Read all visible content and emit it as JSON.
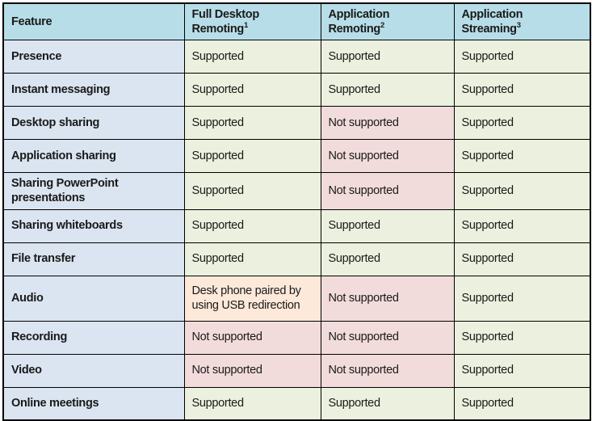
{
  "table": {
    "header": [
      {
        "label": "Feature",
        "sup": ""
      },
      {
        "label": "Full Desktop Remoting",
        "sup": "1"
      },
      {
        "label": "Application Remoting",
        "sup": "2"
      },
      {
        "label": "Application Streaming",
        "sup": "3"
      }
    ],
    "rows": [
      {
        "feature": "Presence",
        "cells": [
          {
            "text": "Supported",
            "status": "supported"
          },
          {
            "text": "Supported",
            "status": "supported"
          },
          {
            "text": "Supported",
            "status": "supported"
          }
        ]
      },
      {
        "feature": "Instant messaging",
        "cells": [
          {
            "text": "Supported",
            "status": "supported"
          },
          {
            "text": "Supported",
            "status": "supported"
          },
          {
            "text": "Supported",
            "status": "supported"
          }
        ]
      },
      {
        "feature": "Desktop sharing",
        "cells": [
          {
            "text": "Supported",
            "status": "supported"
          },
          {
            "text": "Not supported",
            "status": "not_supported"
          },
          {
            "text": "Supported",
            "status": "supported"
          }
        ]
      },
      {
        "feature": "Application sharing",
        "cells": [
          {
            "text": "Supported",
            "status": "supported"
          },
          {
            "text": "Not supported",
            "status": "not_supported"
          },
          {
            "text": "Supported",
            "status": "supported"
          }
        ]
      },
      {
        "feature": "Sharing PowerPoint presentations",
        "cells": [
          {
            "text": "Supported",
            "status": "supported"
          },
          {
            "text": "Not supported",
            "status": "not_supported"
          },
          {
            "text": "Supported",
            "status": "supported"
          }
        ]
      },
      {
        "feature": "Sharing whiteboards",
        "cells": [
          {
            "text": "Supported",
            "status": "supported"
          },
          {
            "text": "Supported",
            "status": "supported"
          },
          {
            "text": "Supported",
            "status": "supported"
          }
        ]
      },
      {
        "feature": "File transfer",
        "cells": [
          {
            "text": "Supported",
            "status": "supported"
          },
          {
            "text": "Supported",
            "status": "supported"
          },
          {
            "text": "Supported",
            "status": "supported"
          }
        ]
      },
      {
        "feature": "Audio",
        "tall": true,
        "cells": [
          {
            "text": "Desk phone paired by using USB redirection",
            "status": "note"
          },
          {
            "text": "Not supported",
            "status": "not_supported"
          },
          {
            "text": "Supported",
            "status": "supported"
          }
        ]
      },
      {
        "feature": "Recording",
        "cells": [
          {
            "text": "Not supported",
            "status": "not_supported"
          },
          {
            "text": "Not supported",
            "status": "not_supported"
          },
          {
            "text": "Supported",
            "status": "supported"
          }
        ]
      },
      {
        "feature": "Video",
        "cells": [
          {
            "text": "Not supported",
            "status": "not_supported"
          },
          {
            "text": "Not supported",
            "status": "not_supported"
          },
          {
            "text": "Supported",
            "status": "supported"
          }
        ]
      },
      {
        "feature": "Online meetings",
        "cells": [
          {
            "text": "Supported",
            "status": "supported"
          },
          {
            "text": "Supported",
            "status": "supported"
          },
          {
            "text": "Supported",
            "status": "supported"
          }
        ]
      }
    ]
  },
  "colors": {
    "header_bg": "#b7dee8",
    "feature_col_bg": "#dbe5f1",
    "supported_bg": "#ebf1de",
    "not_supported_bg": "#f2dcdb",
    "note_bg": "#fde9d9",
    "border": "#000000",
    "text": "#1a1a1a"
  }
}
